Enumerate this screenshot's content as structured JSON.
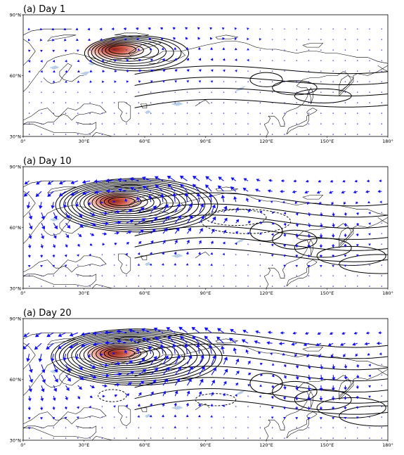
{
  "figure": {
    "panels": [
      {
        "title": "(a) Day 1",
        "vector_strength": 0.35,
        "wave_train_strength": 0.25,
        "negative_ovals": [],
        "heating_center": {
          "lon": 45,
          "lat": 73
        }
      },
      {
        "title": "(a) Day 10",
        "vector_strength": 1.0,
        "wave_train_strength": 0.85,
        "negative_ovals": [
          {
            "lon": 105,
            "lat": 65,
            "rx_deg": 15,
            "ry_deg": 4
          },
          {
            "lon": 110,
            "lat": 63,
            "rx_deg": 22,
            "ry_deg": 6
          }
        ],
        "heating_center": {
          "lon": 45,
          "lat": 73
        }
      },
      {
        "title": "(a) Day 20",
        "vector_strength": 1.1,
        "wave_train_strength": 1.0,
        "negative_ovals": [
          {
            "lon": 44,
            "lat": 52,
            "rx_deg": 7,
            "ry_deg": 3
          },
          {
            "lon": 95,
            "lat": 50,
            "rx_deg": 10,
            "ry_deg": 3
          }
        ],
        "heating_center": {
          "lon": 45,
          "lat": 73
        }
      }
    ],
    "axes": {
      "lon_range": [
        0,
        180
      ],
      "lat_range": [
        30,
        90
      ],
      "x_ticks": [
        "0°",
        "30°E",
        "60°E",
        "90°E",
        "120°E",
        "150°E",
        "180°"
      ],
      "y_ticks": [
        "30°N",
        "60°N",
        "90°N"
      ]
    },
    "colors": {
      "vectors": "#1010ff",
      "contours": "#000000",
      "shading_core": "#b02010",
      "lakes": "#b9cfe6"
    }
  }
}
